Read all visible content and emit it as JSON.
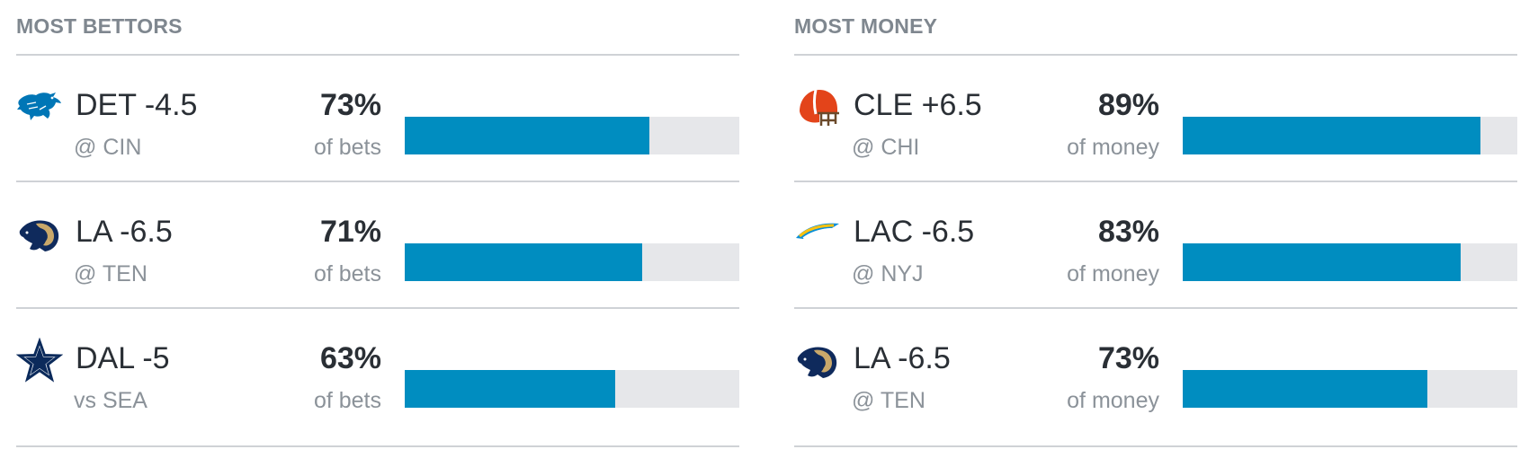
{
  "panels": [
    {
      "title": "MOST BETTORS",
      "rows": [
        {
          "logo": "lions-logo-icon",
          "team_line": "DET -4.5",
          "matchup": "@ CIN",
          "percent_label": "73%",
          "unit_label": "of bets",
          "fill_fraction": 0.73
        },
        {
          "logo": "rams-logo-icon",
          "team_line": "LA -6.5",
          "matchup": "@ TEN",
          "percent_label": "71%",
          "unit_label": "of bets",
          "fill_fraction": 0.71
        },
        {
          "logo": "cowboys-logo-icon",
          "team_line": "DAL -5",
          "matchup": "vs SEA",
          "percent_label": "63%",
          "unit_label": "of bets",
          "fill_fraction": 0.63
        }
      ]
    },
    {
      "title": "MOST MONEY",
      "rows": [
        {
          "logo": "browns-logo-icon",
          "team_line": "CLE +6.5",
          "matchup": "@ CHI",
          "percent_label": "89%",
          "unit_label": "of money",
          "fill_fraction": 0.89
        },
        {
          "logo": "chargers-logo-icon",
          "team_line": "LAC -6.5",
          "matchup": "@ NYJ",
          "percent_label": "83%",
          "unit_label": "of money",
          "fill_fraction": 0.83
        },
        {
          "logo": "rams-logo-icon",
          "team_line": "LA -6.5",
          "matchup": "@ TEN",
          "percent_label": "73%",
          "unit_label": "of money",
          "fill_fraction": 0.73
        }
      ]
    }
  ],
  "colors": {
    "bar_fill": "#008dc0",
    "bar_track": "#e6e7ea",
    "divider": "#cfd2d6",
    "primary_text": "#2a2f35",
    "secondary_text": "#8b9299",
    "title_text": "#7f878f"
  }
}
